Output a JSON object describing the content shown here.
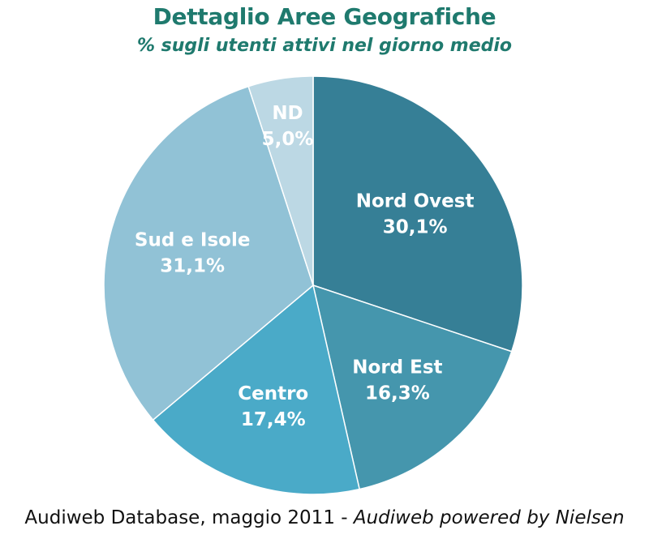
{
  "chart_data": {
    "type": "pie",
    "title": "Dettaglio Aree Geografiche",
    "subtitle": "% sugli utenti attivi nel giorno medio",
    "slices": [
      {
        "name": "Nord Ovest",
        "value_label": "30,1%",
        "value": 30.1,
        "color": "#367f96"
      },
      {
        "name": "Nord Est",
        "value_label": "16,3%",
        "value": 16.3,
        "color": "#4596ad"
      },
      {
        "name": "Centro",
        "value_label": "17,4%",
        "value": 17.4,
        "color": "#4aaac8"
      },
      {
        "name": "Sud e Isole",
        "value_label": "31,1%",
        "value": 31.1,
        "color": "#91c2d6"
      },
      {
        "name": "ND",
        "value_label": "5,0%",
        "value": 5.0,
        "color": "#bcd8e4"
      }
    ],
    "start": "12 o'clock",
    "direction": "clockwise"
  },
  "source": {
    "plain": "Audiweb Database, maggio 2011 - ",
    "italic": "Audiweb powered by Nielsen"
  }
}
